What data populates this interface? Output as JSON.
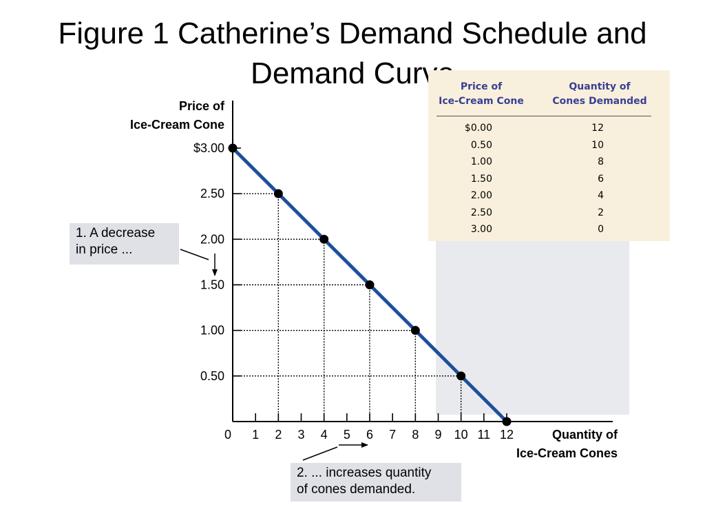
{
  "slide": {
    "title": "Figure 1 Catherine’s Demand Schedule and Demand Curve"
  },
  "chart_data": {
    "type": "line",
    "title": "",
    "xlabel": [
      "Quantity of",
      "Ice-Cream Cones"
    ],
    "ylabel": [
      "Price of",
      "Ice-Cream Cone"
    ],
    "xlim": [
      0,
      12
    ],
    "ylim": [
      0,
      3
    ],
    "x_ticks": [
      0,
      1,
      2,
      3,
      4,
      5,
      6,
      7,
      8,
      9,
      10,
      11,
      12
    ],
    "x_tick_labels": [
      "0",
      "1",
      "2",
      "3",
      "4",
      "5",
      "6",
      "7",
      "8",
      "9",
      "10",
      "11",
      "12"
    ],
    "y_ticks": [
      0.5,
      1.0,
      1.5,
      2.0,
      2.5,
      3.0
    ],
    "y_tick_labels": [
      "0.50",
      "1.00",
      "1.50",
      "2.00",
      "2.50",
      "$3.00"
    ],
    "series": [
      {
        "x": [
          0,
          2,
          4,
          6,
          8,
          10,
          12
        ],
        "y": [
          3.0,
          2.5,
          2.0,
          1.5,
          1.0,
          0.5,
          0.0
        ],
        "color": "#1e4f9c",
        "marker_color": "#000000"
      }
    ],
    "guide_lines": "dotted",
    "annotations": [
      {
        "id": "price",
        "text": [
          "1. A decrease",
          "in price ..."
        ]
      },
      {
        "id": "quantity",
        "text": [
          "2. ...  increases quantity",
          "of cones demanded."
        ]
      }
    ]
  },
  "schedule_table": {
    "headers": [
      [
        "Price of",
        "Ice-Cream Cone"
      ],
      [
        "Quantity of",
        "Cones Demanded"
      ]
    ],
    "rows": [
      [
        "$0.00",
        "12"
      ],
      [
        "0.50",
        "10"
      ],
      [
        "1.00",
        "8"
      ],
      [
        "1.50",
        "6"
      ],
      [
        "2.00",
        "4"
      ],
      [
        "2.50",
        "2"
      ],
      [
        "3.00",
        "0"
      ]
    ],
    "header_color": "#3a3f95",
    "background_color": "#f8f0dc"
  },
  "colors": {
    "curve": "#1e4f9c",
    "callout_bg": "#dfe1e6"
  }
}
